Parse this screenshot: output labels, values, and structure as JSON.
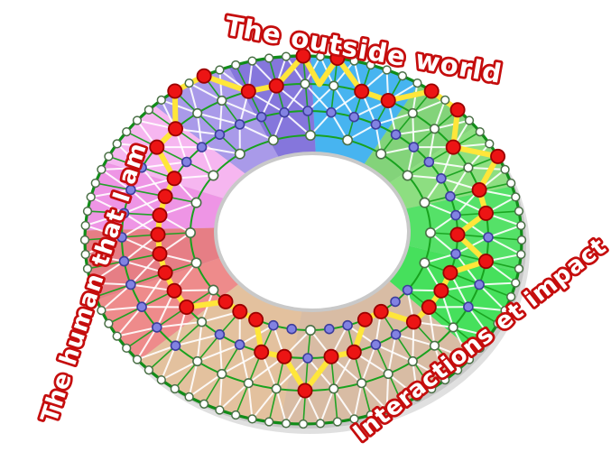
{
  "background": "#ffffff",
  "titles": {
    "top": "The outside world",
    "left": "The human that I am",
    "bottom_right": "Interactions et impact",
    "outline_color": "#c50d0d",
    "fill_color": "#ffffff"
  },
  "wheel": {
    "description": "Donut-shaped competency wheel: 4 concentric node rings inside colored sectors, a yellow profile polyline through red level nodes, and purple secondary nodes",
    "levels": 4,
    "spokes": 40,
    "outer_node_count": 80,
    "inner_node_count": 20,
    "zones": [
      {
        "name": "blue",
        "from": 88,
        "to": 58,
        "color": "#47b4f0"
      },
      {
        "name": "green-light-1",
        "from": 58,
        "to": 38,
        "color": "#83d37a"
      },
      {
        "name": "green-light-2",
        "from": 38,
        "to": 17,
        "color": "#8dde81"
      },
      {
        "name": "green-vivid-1",
        "from": 17,
        "to": -10,
        "color": "#55e168"
      },
      {
        "name": "green-vivid-2",
        "from": -10,
        "to": -38,
        "color": "#46e05c"
      },
      {
        "name": "tan-right",
        "from": -38,
        "to": -96,
        "color": "#d8bca4"
      },
      {
        "name": "tan-left",
        "from": -96,
        "to": -139,
        "color": "#e3c19e"
      },
      {
        "name": "red-lower",
        "from": -139,
        "to": -161,
        "color": "#ee8b8b"
      },
      {
        "name": "red-upper",
        "from": -161,
        "to": -183,
        "color": "#e67e85"
      },
      {
        "name": "pink-deep",
        "from": 177,
        "to": 155,
        "color": "#ee95e5"
      },
      {
        "name": "pink-light",
        "from": 155,
        "to": 133,
        "color": "#f6b6f0"
      },
      {
        "name": "purple-light",
        "from": 133,
        "to": 110,
        "color": "#a99ae9"
      },
      {
        "name": "purple-deep",
        "from": 110,
        "to": 88,
        "color": "#8576dc"
      }
    ],
    "red_levels": [
      4,
      4,
      3,
      3,
      4,
      4,
      3,
      4,
      3,
      3,
      2,
      3,
      2,
      2,
      2,
      2,
      1,
      1,
      2,
      2,
      3,
      2,
      2,
      1,
      1,
      1,
      2,
      2,
      2,
      2,
      2,
      2,
      2,
      2,
      3,
      3,
      4,
      4,
      3,
      3
    ],
    "purple_levels": [
      2,
      2,
      2,
      2,
      2,
      2,
      2,
      2,
      2,
      2,
      3,
      2,
      3,
      3,
      1,
      1,
      2,
      2,
      1,
      1,
      2,
      1,
      1,
      2,
      2,
      3,
      3,
      3,
      3,
      3,
      3,
      3,
      3,
      3,
      2,
      2,
      2,
      2,
      2,
      2
    ],
    "extra_path_points": [
      {
        "after_spoke": 0,
        "level": 3,
        "angle": 85.5
      }
    ],
    "colors": {
      "ring_line": "#18a21e",
      "outer_ring_line": "#108c18",
      "mesh_line": "#ffffff",
      "profile_line": "#ffe63a",
      "node_white": "#ffffff",
      "node_white_stroke": "#4a7046",
      "node_purple": "#8282e2",
      "node_purple_stroke": "#3d3d9c",
      "node_red": "#ec1414",
      "node_red_stroke": "#990000",
      "hole_fill": "#ffffff",
      "hole_rim": "#c9c9c9",
      "shadow": "rgba(60,60,60,0.16)"
    }
  }
}
